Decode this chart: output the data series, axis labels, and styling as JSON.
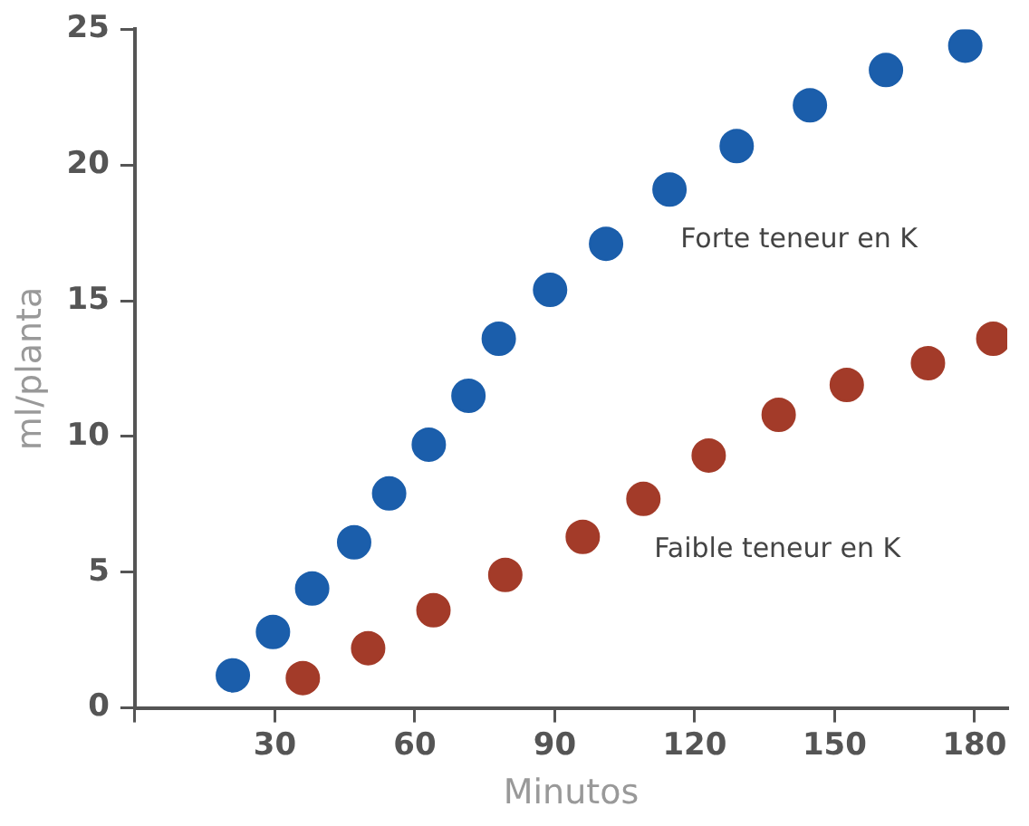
{
  "chart_data": {
    "type": "scatter",
    "xlabel": "Minutos",
    "ylabel": "ml/planta",
    "series": [
      {
        "name": "Forte teneur en K",
        "color": "#1b5eab",
        "x": [
          21,
          29.6,
          38,
          47,
          54.5,
          63,
          71.5,
          78,
          89,
          101,
          114.6,
          129,
          144.7,
          161,
          178
        ],
        "values": [
          1.2,
          2.8,
          4.4,
          6.1,
          7.9,
          9.7,
          11.5,
          13.6,
          15.4,
          17.1,
          19.1,
          20.7,
          22.2,
          23.5,
          24.4
        ]
      },
      {
        "name": "Faible teneur en K",
        "color": "#a33b29",
        "x": [
          36,
          50,
          64,
          79.4,
          96,
          109,
          123,
          138,
          152.6,
          170,
          184
        ],
        "values": [
          1.1,
          2.2,
          3.6,
          4.9,
          6.3,
          7.7,
          9.3,
          10.8,
          11.9,
          12.7,
          13.6
        ]
      }
    ],
    "xlim": [
      0,
      187
    ],
    "xticks": [
      {
        "value": 0,
        "label": null
      },
      30,
      60,
      90,
      120,
      150,
      180
    ],
    "ylim": [
      0,
      25
    ],
    "yticks": [
      0,
      5,
      10,
      15,
      20,
      25
    ],
    "grid": false,
    "legend": false,
    "marker": "circle"
  }
}
